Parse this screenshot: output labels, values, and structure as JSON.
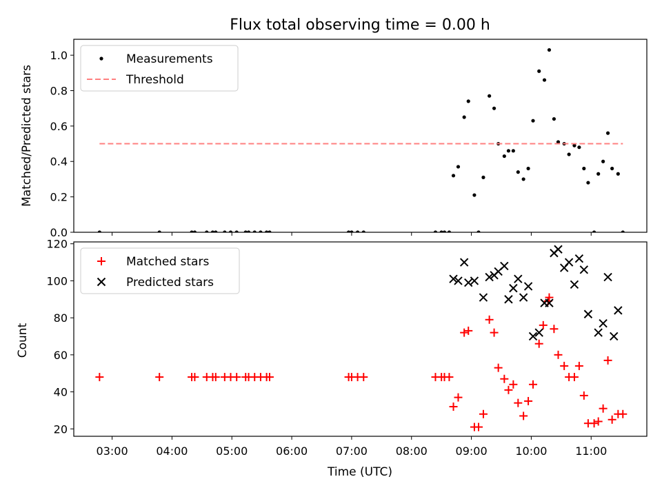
{
  "chart_data": {
    "title": "Flux total observing time = 0.00 h",
    "x_axis": {
      "label": "Time (UTC)",
      "tick_labels": [
        "03:00",
        "04:00",
        "05:00",
        "06:00",
        "07:00",
        "08:00",
        "09:00",
        "10:00",
        "11:00"
      ],
      "tick_values": [
        3,
        4,
        5,
        6,
        7,
        8,
        9,
        10,
        11
      ],
      "range": [
        2.36,
        11.93
      ],
      "unit": "hours UTC"
    },
    "panels": [
      {
        "type": "scatter",
        "ylabel": "Matched/Predicted stars",
        "ylim": [
          0,
          1.09
        ],
        "yticks": [
          "0.0",
          "0.2",
          "0.4",
          "0.6",
          "0.8",
          "1.0"
        ],
        "ytick_values": [
          0,
          0.2,
          0.4,
          0.6,
          0.8,
          1.0
        ],
        "legend_position": "top-left",
        "grid": false,
        "series": [
          {
            "name": "Measurements",
            "kind": "points",
            "color": "#000000",
            "x": [
              2.79,
              3.79,
              4.33,
              4.38,
              4.58,
              4.68,
              4.73,
              4.88,
              4.98,
              5.08,
              5.23,
              5.28,
              5.38,
              5.48,
              5.58,
              5.63,
              6.95,
              7.0,
              7.1,
              7.2,
              8.4,
              8.5,
              8.55,
              8.63,
              8.7,
              8.78,
              8.88,
              8.95,
              9.05,
              9.12,
              9.2,
              9.3,
              9.38,
              9.45,
              9.55,
              9.62,
              9.7,
              9.78,
              9.87,
              9.95,
              10.03,
              10.13,
              10.22,
              10.3,
              10.38,
              10.45,
              10.55,
              10.63,
              10.72,
              10.8,
              10.88,
              10.95,
              11.05,
              11.12,
              11.2,
              11.28,
              11.35,
              11.45,
              11.53
            ],
            "y": [
              0,
              0,
              0,
              0,
              0,
              0,
              0,
              0,
              0,
              0,
              0,
              0,
              0,
              0,
              0,
              0,
              0,
              0,
              0,
              0,
              0,
              0,
              0,
              0,
              0.32,
              0.37,
              0.65,
              0.74,
              0.21,
              0,
              0.31,
              0.77,
              0.7,
              0.5,
              0.43,
              0.46,
              0.46,
              0.34,
              0.3,
              0.36,
              0.63,
              0.91,
              0.86,
              1.03,
              0.64,
              0.51,
              0.5,
              0.44,
              0.49,
              0.48,
              0.36,
              0.28,
              0,
              0.33,
              0.4,
              0.56,
              0.36,
              0.33,
              0
            ]
          },
          {
            "name": "Threshold",
            "kind": "dashed-line",
            "color": "#ff7f7f",
            "x": [
              2.79,
              11.53
            ],
            "y": [
              0.5,
              0.5
            ]
          }
        ]
      },
      {
        "type": "scatter",
        "ylabel": "Count",
        "ylim": [
          16,
          121
        ],
        "yticks": [
          "20",
          "40",
          "60",
          "80",
          "100",
          "120"
        ],
        "ytick_values": [
          20,
          40,
          60,
          80,
          100,
          120
        ],
        "legend_position": "top-left",
        "grid": false,
        "series": [
          {
            "name": "Matched stars",
            "kind": "plus",
            "color": "#ff0000",
            "x": [
              2.79,
              3.79,
              4.33,
              4.38,
              4.58,
              4.68,
              4.73,
              4.88,
              4.98,
              5.08,
              5.23,
              5.28,
              5.38,
              5.48,
              5.58,
              5.63,
              6.95,
              7.0,
              7.1,
              7.2,
              8.4,
              8.5,
              8.55,
              8.63,
              8.7,
              8.78,
              8.88,
              8.95,
              9.05,
              9.12,
              9.2,
              9.3,
              9.38,
              9.45,
              9.55,
              9.62,
              9.7,
              9.78,
              9.87,
              9.95,
              10.03,
              10.13,
              10.2,
              10.28,
              10.3,
              10.38,
              10.45,
              10.55,
              10.63,
              10.72,
              10.8,
              10.88,
              10.95,
              11.05,
              11.12,
              11.2,
              11.28,
              11.35,
              11.45,
              11.53
            ],
            "y": [
              48,
              48,
              48,
              48,
              48,
              48,
              48,
              48,
              48,
              48,
              48,
              48,
              48,
              48,
              48,
              48,
              48,
              48,
              48,
              48,
              48,
              48,
              48,
              48,
              32,
              37,
              72,
              73,
              21,
              21,
              28,
              79,
              72,
              53,
              47,
              41,
              44,
              34,
              27,
              35,
              44,
              66,
              76,
              89,
              91,
              74,
              60,
              54,
              48,
              48,
              54,
              38,
              23,
              23,
              24,
              31,
              57,
              25,
              28,
              28
            ]
          },
          {
            "name": "Predicted stars",
            "kind": "x",
            "color": "#000000",
            "x": [
              8.7,
              8.78,
              8.88,
              8.95,
              9.05,
              9.2,
              9.3,
              9.38,
              9.45,
              9.55,
              9.62,
              9.7,
              9.78,
              9.87,
              9.95,
              10.03,
              10.13,
              10.22,
              10.3,
              10.38,
              10.45,
              10.55,
              10.63,
              10.72,
              10.8,
              10.88,
              10.95,
              11.12,
              11.2,
              11.28,
              11.38,
              11.45
            ],
            "y": [
              101,
              100,
              110,
              99,
              100,
              91,
              102,
              103,
              105,
              108,
              90,
              96,
              101,
              91,
              97,
              70,
              72,
              88,
              88,
              115,
              117,
              107,
              110,
              98,
              112,
              106,
              82,
              72,
              77,
              102,
              70,
              84
            ]
          }
        ]
      }
    ]
  }
}
